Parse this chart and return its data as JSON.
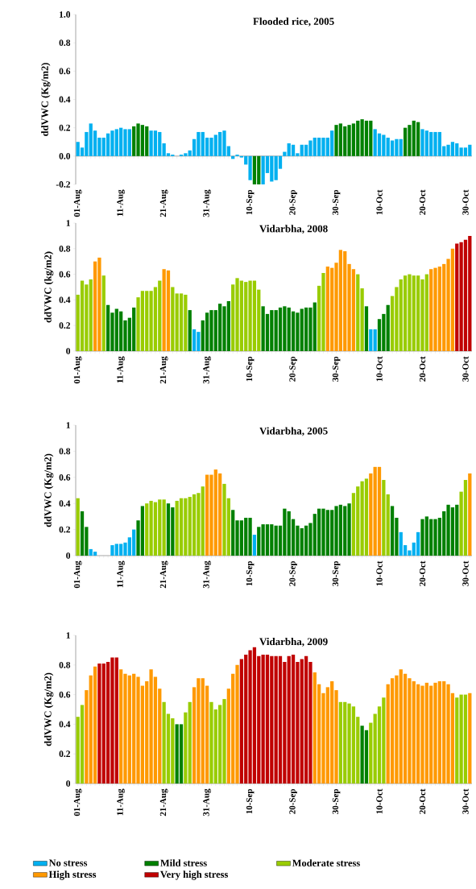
{
  "chart_data": [
    {
      "type": "bar",
      "title": "Flooded rice, 2005",
      "ylabel": "ddVWC (Kg/m2)",
      "categories": [
        "01-Aug",
        null,
        null,
        null,
        null,
        null,
        null,
        null,
        null,
        null,
        "11-Aug",
        null,
        null,
        null,
        null,
        null,
        null,
        null,
        null,
        null,
        "21-Aug",
        null,
        null,
        null,
        null,
        null,
        null,
        null,
        null,
        null,
        "31-Aug",
        null,
        null,
        null,
        null,
        null,
        null,
        null,
        null,
        null,
        "10-Sep",
        null,
        null,
        null,
        null,
        null,
        null,
        null,
        null,
        null,
        "20-Sep",
        null,
        null,
        null,
        null,
        null,
        null,
        null,
        null,
        null,
        "30-Sep",
        null,
        null,
        null,
        null,
        null,
        null,
        null,
        null,
        null,
        "10-Oct",
        null,
        null,
        null,
        null,
        null,
        null,
        null,
        null,
        null,
        "20-Oct",
        null,
        null,
        null,
        null,
        null,
        null,
        null,
        null,
        null,
        "30-Oct",
        null
      ],
      "values": [
        0.1,
        0.06,
        0.17,
        0.23,
        0.18,
        0.13,
        0.13,
        0.16,
        0.18,
        0.19,
        0.2,
        0.19,
        0.19,
        0.21,
        0.23,
        0.22,
        0.21,
        0.18,
        0.18,
        0.17,
        0.09,
        0.02,
        0.01,
        0,
        0.01,
        0.02,
        0.04,
        0.12,
        0.17,
        0.17,
        0.13,
        0.13,
        0.15,
        0.17,
        0.18,
        0.07,
        -0.02,
        0.01,
        -0.01,
        -0.06,
        -0.17,
        -0.2,
        -0.2,
        -0.2,
        -0.12,
        -0.18,
        -0.17,
        -0.09,
        0.03,
        0.09,
        0.08,
        0.02,
        0.08,
        0.08,
        0.11,
        0.13,
        0.13,
        0.13,
        0.13,
        0.18,
        0.22,
        0.23,
        0.21,
        0.22,
        0.23,
        0.25,
        0.26,
        0.25,
        0.25,
        0.19,
        0.16,
        0.15,
        0.13,
        0.11,
        0.12,
        0.12,
        0.2,
        0.22,
        0.25,
        0.24,
        0.19,
        0.18,
        0.17,
        0.17,
        0.17,
        0.07,
        0.08,
        0.1,
        0.09,
        0.06,
        0.06,
        0.08
      ],
      "colors": [
        "#00b0f0",
        "#00b0f0",
        "#00b0f0",
        "#00b0f0",
        "#00b0f0",
        "#00b0f0",
        "#00b0f0",
        "#00b0f0",
        "#00b0f0",
        "#00b0f0",
        "#00b0f0",
        "#00b0f0",
        "#00b0f0",
        "#008000",
        "#008000",
        "#008000",
        "#008000",
        "#00b0f0",
        "#00b0f0",
        "#00b0f0",
        "#00b0f0",
        "#00b0f0",
        "#00b0f0",
        "#00b0f0",
        "#00b0f0",
        "#00b0f0",
        "#00b0f0",
        "#00b0f0",
        "#00b0f0",
        "#00b0f0",
        "#00b0f0",
        "#00b0f0",
        "#00b0f0",
        "#00b0f0",
        "#00b0f0",
        "#00b0f0",
        "#00b0f0",
        "#00b0f0",
        "#00b0f0",
        "#00b0f0",
        "#00b0f0",
        "#008000",
        "#008000",
        "#00b0f0",
        "#00b0f0",
        "#00b0f0",
        "#00b0f0",
        "#00b0f0",
        "#00b0f0",
        "#00b0f0",
        "#00b0f0",
        "#00b0f0",
        "#00b0f0",
        "#00b0f0",
        "#00b0f0",
        "#00b0f0",
        "#00b0f0",
        "#00b0f0",
        "#00b0f0",
        "#00b0f0",
        "#008000",
        "#008000",
        "#008000",
        "#008000",
        "#008000",
        "#008000",
        "#008000",
        "#008000",
        "#008000",
        "#00b0f0",
        "#00b0f0",
        "#00b0f0",
        "#00b0f0",
        "#00b0f0",
        "#00b0f0",
        "#00b0f0",
        "#008000",
        "#008000",
        "#008000",
        "#008000",
        "#00b0f0",
        "#00b0f0",
        "#00b0f0",
        "#00b0f0",
        "#00b0f0",
        "#00b0f0",
        "#00b0f0",
        "#00b0f0",
        "#00b0f0",
        "#00b0f0",
        "#00b0f0",
        "#00b0f0"
      ],
      "ylim": [
        -0.2,
        1.0
      ],
      "yticks": [
        -0.2,
        {
          "value": 0,
          "label": "0.0"
        },
        0.2,
        0.4,
        0.6,
        0.8,
        {
          "value": 1,
          "label": "1.0"
        }
      ]
    },
    {
      "type": "bar",
      "title": "Vidarbha, 2008",
      "ylabel": "ddVWC (kg/m2)",
      "categories": [
        "01-Aug",
        null,
        null,
        null,
        null,
        null,
        null,
        null,
        null,
        null,
        "11-Aug",
        null,
        null,
        null,
        null,
        null,
        null,
        null,
        null,
        null,
        "21-Aug",
        null,
        null,
        null,
        null,
        null,
        null,
        null,
        null,
        null,
        "31-Aug",
        null,
        null,
        null,
        null,
        null,
        null,
        null,
        null,
        null,
        "10-Sep",
        null,
        null,
        null,
        null,
        null,
        null,
        null,
        null,
        null,
        "20-Sep",
        null,
        null,
        null,
        null,
        null,
        null,
        null,
        null,
        null,
        "30-Sep",
        null,
        null,
        null,
        null,
        null,
        null,
        null,
        null,
        null,
        "10-Oct",
        null,
        null,
        null,
        null,
        null,
        null,
        null,
        null,
        null,
        "20-Oct",
        null,
        null,
        null,
        null,
        null,
        null,
        null,
        null,
        null,
        "30-Oct",
        null
      ],
      "values": [
        0.44,
        0.55,
        0.52,
        0.56,
        0.7,
        0.73,
        0.59,
        0.36,
        0.3,
        0.33,
        0.31,
        0.24,
        0.26,
        0.34,
        0.42,
        0.47,
        0.47,
        0.47,
        0.5,
        0.55,
        0.64,
        0.63,
        0.5,
        0.45,
        0.45,
        0.44,
        0.32,
        0.17,
        0.15,
        0.24,
        0.3,
        0.32,
        0.32,
        0.37,
        0.35,
        0.39,
        0.52,
        0.57,
        0.55,
        0.54,
        0.55,
        0.55,
        0.48,
        0.35,
        0.29,
        0.32,
        0.32,
        0.34,
        0.35,
        0.34,
        0.31,
        0.3,
        0.33,
        0.34,
        0.34,
        0.38,
        0.51,
        0.61,
        0.66,
        0.65,
        0.69,
        0.79,
        0.78,
        0.68,
        0.64,
        0.6,
        0.49,
        0.35,
        0.17,
        0.17,
        0.25,
        0.29,
        0.36,
        0.43,
        0.5,
        0.56,
        0.59,
        0.6,
        0.59,
        0.59,
        0.56,
        0.6,
        0.64,
        0.65,
        0.66,
        0.68,
        0.72,
        0.8,
        0.84,
        0.85,
        0.87,
        0.9
      ],
      "colors": [
        "#99cc00",
        "#99cc00",
        "#99cc00",
        "#99cc00",
        "#ff9900",
        "#ff9900",
        "#99cc00",
        "#008000",
        "#008000",
        "#008000",
        "#008000",
        "#008000",
        "#008000",
        "#008000",
        "#99cc00",
        "#99cc00",
        "#99cc00",
        "#99cc00",
        "#99cc00",
        "#99cc00",
        "#ff9900",
        "#ff9900",
        "#99cc00",
        "#99cc00",
        "#99cc00",
        "#99cc00",
        "#008000",
        "#00b0f0",
        "#00b0f0",
        "#008000",
        "#008000",
        "#008000",
        "#008000",
        "#008000",
        "#008000",
        "#008000",
        "#99cc00",
        "#99cc00",
        "#99cc00",
        "#99cc00",
        "#99cc00",
        "#99cc00",
        "#99cc00",
        "#008000",
        "#008000",
        "#008000",
        "#008000",
        "#008000",
        "#008000",
        "#008000",
        "#008000",
        "#008000",
        "#008000",
        "#008000",
        "#008000",
        "#008000",
        "#99cc00",
        "#99cc00",
        "#ff9900",
        "#ff9900",
        "#ff9900",
        "#ff9900",
        "#ff9900",
        "#ff9900",
        "#ff9900",
        "#99cc00",
        "#99cc00",
        "#008000",
        "#00b0f0",
        "#00b0f0",
        "#008000",
        "#008000",
        "#008000",
        "#99cc00",
        "#99cc00",
        "#99cc00",
        "#99cc00",
        "#99cc00",
        "#99cc00",
        "#99cc00",
        "#99cc00",
        "#99cc00",
        "#ff9900",
        "#ff9900",
        "#ff9900",
        "#ff9900",
        "#ff9900",
        "#ff9900",
        "#c00000",
        "#c00000",
        "#c00000",
        "#c00000"
      ],
      "ylim": [
        0,
        1
      ],
      "yticks": [
        0,
        0.2,
        0.4,
        0.6,
        0.8,
        1
      ]
    },
    {
      "type": "bar",
      "title": "Vidarbha, 2005",
      "ylabel": "ddVWC (Kg/m2)",
      "categories": [
        "01-Aug",
        null,
        null,
        null,
        null,
        null,
        null,
        null,
        null,
        null,
        "11-Aug",
        null,
        null,
        null,
        null,
        null,
        null,
        null,
        null,
        null,
        "21-Aug",
        null,
        null,
        null,
        null,
        null,
        null,
        null,
        null,
        null,
        "31-Aug",
        null,
        null,
        null,
        null,
        null,
        null,
        null,
        null,
        null,
        "10-Sep",
        null,
        null,
        null,
        null,
        null,
        null,
        null,
        null,
        null,
        "20-Sep",
        null,
        null,
        null,
        null,
        null,
        null,
        null,
        null,
        null,
        "30-Sep",
        null,
        null,
        null,
        null,
        null,
        null,
        null,
        null,
        null,
        "10-Oct",
        null,
        null,
        null,
        null,
        null,
        null,
        null,
        null,
        null,
        "20-Oct",
        null,
        null,
        null,
        null,
        null,
        null,
        null,
        null,
        null,
        "30-Oct",
        null
      ],
      "values": [
        0.44,
        0.34,
        0.22,
        0.05,
        0.03,
        0,
        0,
        0,
        0.08,
        0.09,
        0.09,
        0.1,
        0.14,
        0.2,
        0.27,
        0.38,
        0.4,
        0.42,
        0.41,
        0.43,
        0.43,
        0.4,
        0.37,
        0.42,
        0.44,
        0.44,
        0.45,
        0.47,
        0.48,
        0.53,
        0.62,
        0.62,
        0.66,
        0.63,
        0.55,
        0.44,
        0.35,
        0.27,
        0.27,
        0.29,
        0.29,
        0.16,
        0.22,
        0.24,
        0.24,
        0.24,
        0.23,
        0.23,
        0.36,
        0.34,
        0.28,
        0.23,
        0.21,
        0.23,
        0.25,
        0.32,
        0.36,
        0.36,
        0.35,
        0.35,
        0.38,
        0.39,
        0.38,
        0.4,
        0.48,
        0.53,
        0.57,
        0.59,
        0.63,
        0.68,
        0.68,
        0.58,
        0.47,
        0.38,
        0.29,
        0.18,
        0.08,
        0.04,
        0.1,
        0.18,
        0.28,
        0.3,
        0.28,
        0.28,
        0.29,
        0.34,
        0.39,
        0.37,
        0.39,
        0.49,
        0.58,
        0.63
      ],
      "colors": [
        "#99cc00",
        "#008000",
        "#008000",
        "#00b0f0",
        "#00b0f0",
        "#00b0f0",
        "#00b0f0",
        "#00b0f0",
        "#00b0f0",
        "#00b0f0",
        "#00b0f0",
        "#00b0f0",
        "#00b0f0",
        "#00b0f0",
        "#008000",
        "#008000",
        "#99cc00",
        "#99cc00",
        "#99cc00",
        "#99cc00",
        "#99cc00",
        "#008000",
        "#008000",
        "#99cc00",
        "#99cc00",
        "#99cc00",
        "#99cc00",
        "#99cc00",
        "#99cc00",
        "#99cc00",
        "#ff9900",
        "#ff9900",
        "#ff9900",
        "#ff9900",
        "#99cc00",
        "#99cc00",
        "#008000",
        "#008000",
        "#008000",
        "#008000",
        "#008000",
        "#00b0f0",
        "#008000",
        "#008000",
        "#008000",
        "#008000",
        "#008000",
        "#008000",
        "#008000",
        "#008000",
        "#008000",
        "#008000",
        "#008000",
        "#008000",
        "#008000",
        "#008000",
        "#008000",
        "#008000",
        "#008000",
        "#008000",
        "#008000",
        "#008000",
        "#008000",
        "#008000",
        "#99cc00",
        "#99cc00",
        "#99cc00",
        "#99cc00",
        "#ff9900",
        "#ff9900",
        "#ff9900",
        "#99cc00",
        "#99cc00",
        "#008000",
        "#008000",
        "#00b0f0",
        "#00b0f0",
        "#00b0f0",
        "#00b0f0",
        "#00b0f0",
        "#008000",
        "#008000",
        "#008000",
        "#008000",
        "#008000",
        "#008000",
        "#008000",
        "#008000",
        "#008000",
        "#99cc00",
        "#99cc00",
        "#ff9900"
      ],
      "ylim": [
        0,
        1
      ],
      "yticks": [
        0,
        0.2,
        0.4,
        0.6,
        0.8,
        1
      ]
    },
    {
      "type": "bar",
      "title": "Vidarbha, 2009",
      "ylabel": "ddVWC (Kg/m2)",
      "stacked": true,
      "legend": "bottom",
      "categories": [
        "01-Aug",
        null,
        null,
        null,
        null,
        null,
        null,
        null,
        null,
        null,
        "11-Aug",
        null,
        null,
        null,
        null,
        null,
        null,
        null,
        null,
        null,
        "21-Aug",
        null,
        null,
        null,
        null,
        null,
        null,
        null,
        null,
        null,
        "31-Aug",
        null,
        null,
        null,
        null,
        null,
        null,
        null,
        null,
        null,
        "10-Sep",
        null,
        null,
        null,
        null,
        null,
        null,
        null,
        null,
        null,
        "20-Sep",
        null,
        null,
        null,
        null,
        null,
        null,
        null,
        null,
        null,
        "30-Sep",
        null,
        null,
        null,
        null,
        null,
        null,
        null,
        null,
        null,
        "10-Oct",
        null,
        null,
        null,
        null,
        null,
        null,
        null,
        null,
        null,
        "20-Oct",
        null,
        null,
        null,
        null,
        null,
        null,
        null,
        null,
        null,
        "30-Oct",
        null
      ],
      "series": [
        {
          "name": "No stress",
          "color": "#00b0f0",
          "values": [
            null,
            null,
            null,
            null,
            null,
            null,
            null,
            null,
            null,
            null,
            null,
            null,
            null,
            null,
            null,
            null,
            null,
            null,
            null,
            null,
            null,
            null,
            null,
            null,
            null,
            null,
            null,
            null,
            null,
            null,
            null,
            null,
            null,
            null,
            null,
            null,
            null,
            null,
            null,
            null,
            null,
            null,
            null,
            null,
            null,
            null,
            null,
            null,
            null,
            null,
            null,
            null,
            null,
            null,
            null,
            null,
            null,
            null,
            null,
            null,
            null,
            null,
            null,
            null,
            null,
            null,
            null,
            null,
            null,
            null,
            null,
            null,
            null,
            null,
            null,
            null,
            null,
            null,
            null,
            null,
            null,
            null,
            null,
            null,
            null,
            null,
            null,
            null,
            null,
            null,
            null,
            null
          ]
        },
        {
          "name": "Mild stress",
          "color": "#008000",
          "values": [
            null,
            null,
            null,
            null,
            null,
            null,
            null,
            null,
            null,
            null,
            null,
            null,
            null,
            null,
            null,
            null,
            null,
            null,
            null,
            null,
            null,
            null,
            null,
            0.4,
            0.4,
            null,
            null,
            null,
            null,
            null,
            null,
            null,
            null,
            null,
            null,
            null,
            null,
            null,
            null,
            null,
            null,
            null,
            null,
            null,
            null,
            null,
            null,
            null,
            null,
            null,
            null,
            null,
            null,
            null,
            null,
            null,
            null,
            null,
            null,
            null,
            null,
            null,
            null,
            null,
            null,
            null,
            0.39,
            0.36,
            null,
            null,
            null,
            null,
            null,
            null,
            null,
            null,
            null,
            null,
            null,
            null,
            null,
            null,
            null,
            null,
            null,
            null,
            null,
            null,
            null,
            null,
            null,
            null
          ]
        },
        {
          "name": "Moderate stress",
          "color": "#99cc00",
          "values": [
            0.45,
            0.53,
            null,
            null,
            null,
            null,
            null,
            null,
            null,
            null,
            null,
            null,
            null,
            null,
            null,
            null,
            null,
            null,
            null,
            null,
            0.55,
            0.47,
            0.44,
            null,
            null,
            0.48,
            0.55,
            null,
            null,
            null,
            null,
            0.55,
            0.5,
            0.53,
            0.57,
            null,
            null,
            null,
            null,
            null,
            null,
            null,
            null,
            null,
            null,
            null,
            null,
            null,
            null,
            null,
            null,
            null,
            null,
            null,
            null,
            null,
            null,
            null,
            null,
            null,
            null,
            0.55,
            0.55,
            0.54,
            0.52,
            0.45,
            null,
            null,
            0.41,
            0.47,
            0.52,
            0.58,
            null,
            null,
            null,
            null,
            null,
            null,
            null,
            null,
            null,
            null,
            null,
            null,
            null,
            null,
            null,
            null,
            0.58,
            0.6,
            0.6,
            null
          ]
        },
        {
          "name": "High stress",
          "color": "#ff9900",
          "values": [
            null,
            null,
            0.63,
            0.73,
            0.79,
            null,
            null,
            null,
            null,
            null,
            0.77,
            0.74,
            0.73,
            0.74,
            0.72,
            0.66,
            0.69,
            0.77,
            0.72,
            0.64,
            null,
            null,
            null,
            null,
            null,
            null,
            null,
            0.65,
            0.71,
            0.71,
            0.66,
            null,
            null,
            null,
            null,
            0.64,
            0.74,
            0.8,
            null,
            null,
            null,
            null,
            null,
            null,
            null,
            null,
            null,
            null,
            null,
            null,
            null,
            null,
            null,
            null,
            null,
            0.75,
            0.67,
            0.61,
            0.65,
            0.69,
            0.63,
            null,
            null,
            null,
            null,
            null,
            null,
            null,
            null,
            null,
            null,
            null,
            0.67,
            0.71,
            0.73,
            0.77,
            0.74,
            0.71,
            0.69,
            0.67,
            0.66,
            0.68,
            0.66,
            0.68,
            0.69,
            0.69,
            0.67,
            0.61,
            null,
            null,
            null,
            0.61
          ]
        },
        {
          "name": "Very high stress",
          "color": "#c00000",
          "values": [
            null,
            null,
            null,
            null,
            null,
            0.81,
            0.81,
            0.82,
            0.85,
            0.85,
            null,
            null,
            null,
            null,
            null,
            null,
            null,
            null,
            null,
            null,
            null,
            null,
            null,
            null,
            null,
            null,
            null,
            null,
            null,
            null,
            null,
            null,
            null,
            null,
            null,
            null,
            null,
            null,
            0.84,
            0.87,
            0.9,
            0.92,
            0.86,
            0.87,
            0.87,
            0.86,
            0.86,
            0.86,
            0.82,
            0.86,
            0.87,
            0.82,
            0.84,
            0.86,
            0.82,
            null,
            null,
            null,
            null,
            null,
            null,
            null,
            null,
            null,
            null,
            null,
            null,
            null,
            null,
            null,
            null,
            null,
            null,
            null,
            null,
            null,
            null,
            null,
            null,
            null,
            null,
            null,
            null,
            null,
            null,
            null,
            null,
            null,
            null,
            null,
            null,
            null
          ]
        }
      ],
      "ylim": [
        0,
        1
      ],
      "yticks": [
        0,
        0.2,
        0.4,
        0.6,
        0.8,
        1
      ]
    }
  ]
}
